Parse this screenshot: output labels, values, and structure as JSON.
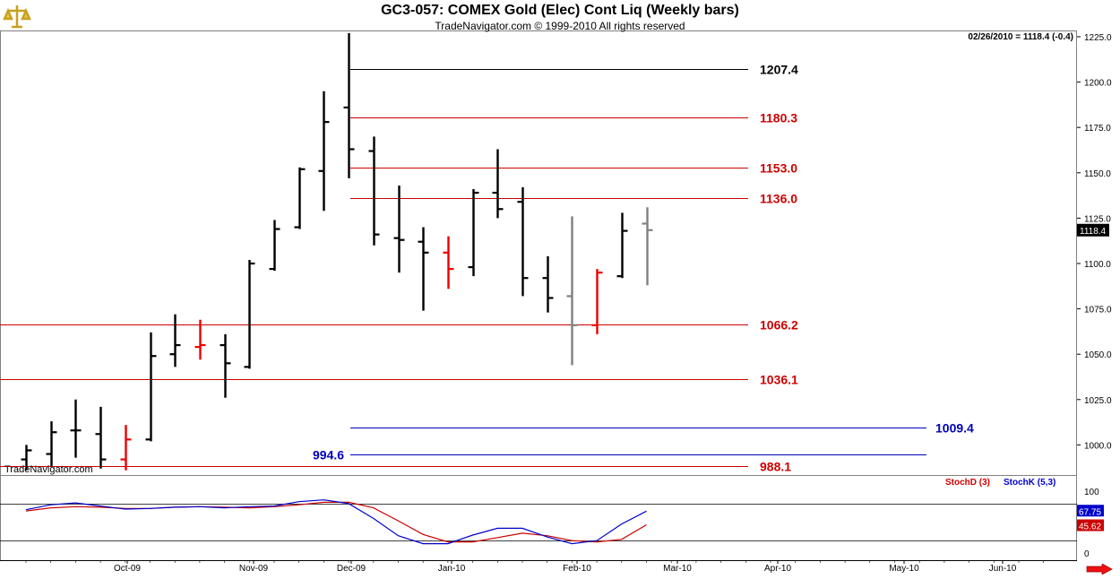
{
  "title": "GC3-057:  COMEX Gold (Elec) Cont Liq  (Weekly bars)",
  "subtitle": "TradeNavigator.com © 1999-2010 All rights reserved",
  "last_info": "02/26/2010 = 1118.4 (-0.4)",
  "watermark": "TradeNavigator.com",
  "last_price_label": "1118.4",
  "stoch_legend": {
    "d": "StochD (3)",
    "k": "StochK (5,3)"
  },
  "stoch_values": {
    "k_last": "67.75",
    "d_last": "45.62"
  },
  "colors": {
    "up": "#000000",
    "down": "#ee0000",
    "neutral": "#808080",
    "stoch_k": "#0000cc",
    "stoch_d": "#cc0000",
    "level_red": "#cc0000",
    "level_black": "#000000",
    "level_blue": "#0000bb"
  },
  "chart_data": [
    {
      "type": "ohlc",
      "title": "GC3-057:  COMEX Gold (Elec) Cont Liq  (Weekly bars)",
      "ylim": [
        985,
        1230
      ],
      "y_ticks": [
        "1225.0",
        "1200.0",
        "1175.0",
        "1150.0",
        "1125.0",
        "1100.0",
        "1075.0",
        "1050.0",
        "1025.0",
        "1000.0"
      ],
      "x_tick_labels": [
        "Oct-09",
        "Nov-09",
        "Dec-09",
        "Jan-10",
        "Feb-10",
        "Mar-10",
        "Apr-10",
        "May-10",
        "Jun-10"
      ],
      "bars": [
        {
          "o": 992,
          "h": 1000,
          "l": 986,
          "c": 997,
          "color": "up"
        },
        {
          "o": 995,
          "h": 1013,
          "l": 988,
          "c": 1007,
          "color": "up"
        },
        {
          "o": 1008,
          "h": 1025,
          "l": 993,
          "c": 1008,
          "color": "up"
        },
        {
          "o": 1006,
          "h": 1021,
          "l": 987,
          "c": 992,
          "color": "up"
        },
        {
          "o": 992,
          "h": 1011,
          "l": 986,
          "c": 1003,
          "color": "down"
        },
        {
          "o": 1003,
          "h": 1062,
          "l": 1002,
          "c": 1049,
          "color": "up"
        },
        {
          "o": 1050,
          "h": 1072,
          "l": 1043,
          "c": 1055,
          "color": "up"
        },
        {
          "o": 1054,
          "h": 1069,
          "l": 1047,
          "c": 1055,
          "color": "down"
        },
        {
          "o": 1055,
          "h": 1061,
          "l": 1026,
          "c": 1045,
          "color": "up"
        },
        {
          "o": 1043,
          "h": 1102,
          "l": 1042,
          "c": 1100,
          "color": "up"
        },
        {
          "o": 1097,
          "h": 1124,
          "l": 1096,
          "c": 1119,
          "color": "up"
        },
        {
          "o": 1120,
          "h": 1153,
          "l": 1119,
          "c": 1152,
          "color": "up"
        },
        {
          "o": 1151,
          "h": 1195,
          "l": 1129,
          "c": 1178,
          "color": "up"
        },
        {
          "o": 1186,
          "h": 1227,
          "l": 1147,
          "c": 1163,
          "color": "up"
        },
        {
          "o": 1162,
          "h": 1170,
          "l": 1110,
          "c": 1116,
          "color": "up"
        },
        {
          "o": 1114,
          "h": 1143,
          "l": 1095,
          "c": 1113,
          "color": "up"
        },
        {
          "o": 1112,
          "h": 1120,
          "l": 1074,
          "c": 1106,
          "color": "up"
        },
        {
          "o": 1106,
          "h": 1115,
          "l": 1086,
          "c": 1097,
          "color": "down"
        },
        {
          "o": 1098,
          "h": 1141,
          "l": 1093,
          "c": 1139,
          "color": "up"
        },
        {
          "o": 1139,
          "h": 1163,
          "l": 1125,
          "c": 1130,
          "color": "up"
        },
        {
          "o": 1134,
          "h": 1142,
          "l": 1082,
          "c": 1092,
          "color": "up"
        },
        {
          "o": 1092,
          "h": 1104,
          "l": 1073,
          "c": 1081,
          "color": "up"
        },
        {
          "o": 1082,
          "h": 1126,
          "l": 1044,
          "c": 1066,
          "color": "neutral"
        },
        {
          "o": 1066,
          "h": 1097,
          "l": 1061,
          "c": 1095,
          "color": "down"
        },
        {
          "o": 1093,
          "h": 1128,
          "l": 1092,
          "c": 1118,
          "color": "up"
        },
        {
          "o": 1122,
          "h": 1131,
          "l": 1088,
          "c": 1118.4,
          "color": "neutral"
        }
      ],
      "levels": [
        {
          "value": 1207.4,
          "label": "1207.4",
          "color": "black",
          "span": "short",
          "label_side": "right"
        },
        {
          "value": 1180.3,
          "label": "1180.3",
          "color": "red",
          "span": "short",
          "label_side": "right"
        },
        {
          "value": 1153.0,
          "label": "1153.0",
          "color": "red",
          "span": "short",
          "label_side": "right"
        },
        {
          "value": 1136.0,
          "label": "1136.0",
          "color": "red",
          "span": "short",
          "label_side": "right"
        },
        {
          "value": 1066.2,
          "label": "1066.2",
          "color": "red",
          "span": "full",
          "label_side": "right"
        },
        {
          "value": 1036.1,
          "label": "1036.1",
          "color": "red",
          "span": "full",
          "label_side": "right"
        },
        {
          "value": 1009.4,
          "label": "1009.4",
          "color": "blue",
          "span": "long",
          "label_side": "right"
        },
        {
          "value": 994.6,
          "label": "994.6",
          "color": "blue",
          "span": "long",
          "label_side": "left"
        },
        {
          "value": 988.1,
          "label": "988.1",
          "color": "red",
          "span": "full",
          "label_side": "right"
        }
      ]
    },
    {
      "type": "line",
      "series": [
        {
          "name": "StochD (3)",
          "color": "red",
          "values": [
            68,
            73,
            75,
            74,
            72,
            72,
            74,
            75,
            74,
            73,
            75,
            78,
            82,
            82,
            73,
            52,
            30,
            18,
            18,
            25,
            32,
            28,
            20,
            18,
            22,
            45.62
          ]
        },
        {
          "name": "StochK (5,3)",
          "color": "blue",
          "values": [
            70,
            78,
            81,
            76,
            71,
            72,
            74,
            75,
            73,
            75,
            76,
            83,
            86,
            80,
            56,
            28,
            15,
            15,
            29,
            40,
            40,
            26,
            15,
            20,
            47,
            67.75
          ]
        }
      ],
      "ylim": [
        0,
        100
      ],
      "y_ticks": [
        "100",
        "50",
        "0"
      ],
      "reference_lines": [
        80,
        20
      ]
    }
  ]
}
